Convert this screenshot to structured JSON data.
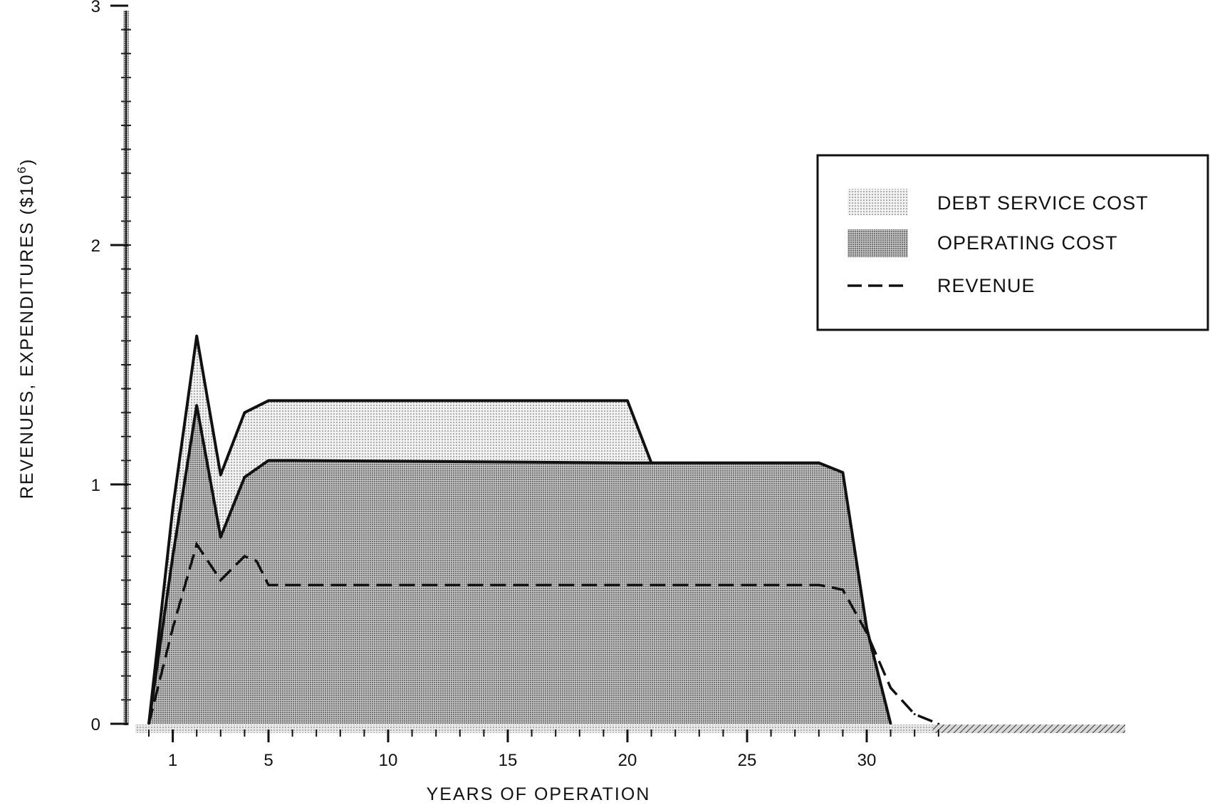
{
  "chart_data": {
    "type": "area",
    "xlabel": "YEARS OF OPERATION",
    "ylabel": "REVENUES, EXPENDITURES ($10",
    "ylabel_superscript": "6",
    "ylabel_close": ")",
    "xlim": [
      -1,
      40
    ],
    "ylim": [
      0,
      3
    ],
    "xticks": [
      1,
      5,
      10,
      15,
      20,
      25,
      30
    ],
    "yticks": [
      0,
      1,
      2,
      3
    ],
    "legend_position": "top-right",
    "series": [
      {
        "name": "DEBT SERVICE COST",
        "style": "light-dots",
        "x": [
          0,
          1,
          2,
          3,
          4,
          5,
          6,
          20,
          21
        ],
        "values": [
          0,
          0.9,
          1.62,
          1.04,
          1.3,
          1.35,
          1.35,
          1.35,
          1.09
        ]
      },
      {
        "name": "OPERATING COST",
        "style": "dark-dots",
        "x": [
          0,
          1,
          2,
          3,
          4,
          5,
          6,
          20,
          28,
          29,
          30,
          31
        ],
        "values": [
          0,
          0.7,
          1.33,
          0.78,
          1.03,
          1.1,
          1.1,
          1.09,
          1.09,
          1.05,
          0.4,
          0
        ]
      },
      {
        "name": "REVENUE",
        "style": "dashed-line",
        "x": [
          0,
          1,
          2,
          3,
          4,
          4.5,
          5,
          28,
          29,
          30,
          31,
          32,
          33
        ],
        "values": [
          0,
          0.4,
          0.75,
          0.6,
          0.7,
          0.68,
          0.58,
          0.58,
          0.56,
          0.38,
          0.15,
          0.04,
          0
        ]
      }
    ]
  }
}
